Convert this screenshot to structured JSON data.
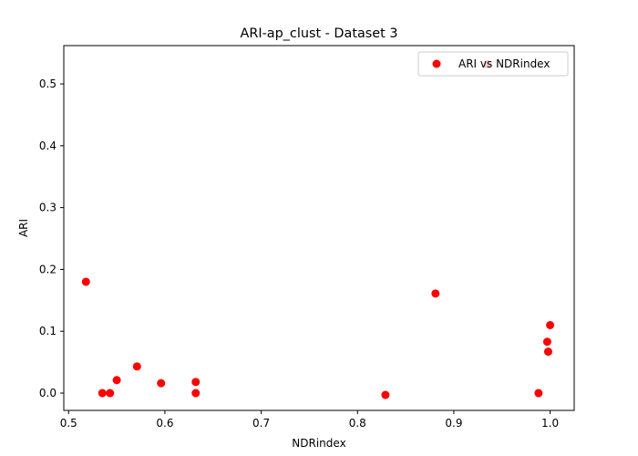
{
  "chart_data": {
    "type": "scatter",
    "title": "ARI-ap_clust - Dataset 3",
    "xlabel": "NDRindex",
    "ylabel": "ARI",
    "xlim": [
      0.495,
      1.025
    ],
    "ylim": [
      -0.028,
      0.562
    ],
    "xticks": [
      0.5,
      0.6,
      0.7,
      0.8,
      0.9,
      1.0
    ],
    "xtick_labels": [
      "0.5",
      "0.6",
      "0.7",
      "0.8",
      "0.9",
      "1.0"
    ],
    "yticks": [
      0.0,
      0.1,
      0.2,
      0.3,
      0.4,
      0.5
    ],
    "ytick_labels": [
      "0.0",
      "0.1",
      "0.2",
      "0.3",
      "0.4",
      "0.5"
    ],
    "grid": false,
    "legend_position": "top-right",
    "series": [
      {
        "name": "ARI vs NDRindex",
        "color": "#ff0000",
        "points": [
          {
            "x": 0.518,
            "y": 0.18
          },
          {
            "x": 0.535,
            "y": 0.0
          },
          {
            "x": 0.543,
            "y": 0.0
          },
          {
            "x": 0.55,
            "y": 0.021
          },
          {
            "x": 0.571,
            "y": 0.043
          },
          {
            "x": 0.596,
            "y": 0.016
          },
          {
            "x": 0.632,
            "y": 0.018
          },
          {
            "x": 0.632,
            "y": 0.0
          },
          {
            "x": 0.829,
            "y": -0.003
          },
          {
            "x": 0.881,
            "y": 0.161
          },
          {
            "x": 0.935,
            "y": 0.532
          },
          {
            "x": 0.988,
            "y": 0.0
          },
          {
            "x": 0.997,
            "y": 0.083
          },
          {
            "x": 0.998,
            "y": 0.067
          },
          {
            "x": 1.0,
            "y": 0.11
          }
        ]
      }
    ]
  }
}
